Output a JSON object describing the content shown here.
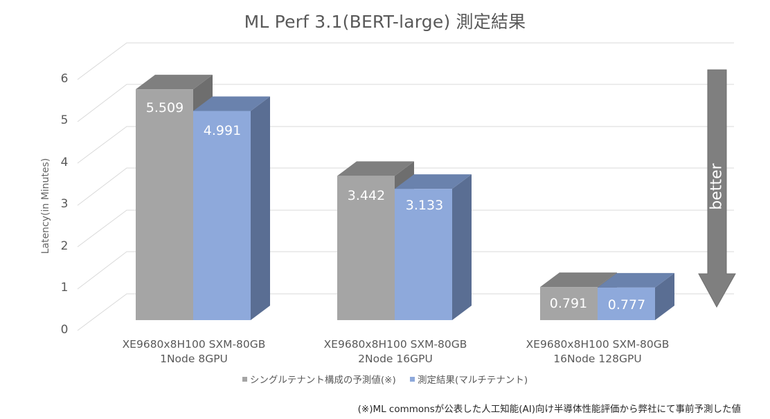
{
  "title": "ML Perf 3.1(BERT-large) 測定結果",
  "y_axis": {
    "label": "Latency(in Minutes)",
    "ticks": [
      "0",
      "1",
      "2",
      "3",
      "4",
      "5",
      "6"
    ]
  },
  "categories": [
    {
      "line1": "XE9680x8H100 SXM-80GB",
      "line2": "1Node 8GPU"
    },
    {
      "line1": "XE9680x8H100 SXM-80GB",
      "line2": "2Node 16GPU"
    },
    {
      "line1": "XE9680x8H100 SXM-80GB",
      "line2": "16Node 128GPU"
    }
  ],
  "values": {
    "single": [
      "5.509",
      "3.442",
      "0.791"
    ],
    "multi": [
      "4.991",
      "3.133",
      "0.777"
    ]
  },
  "legend": {
    "single": "シングルテナント構成の予測値(※)",
    "multi": "測定結果(マルチテナント)"
  },
  "arrow_label": "better",
  "footnote": "(※)ML commonsが公表した人工知能(AI)向け半導体性能評価から弊社にて事前予測した値",
  "colors": {
    "single_front": "#A5A5A5",
    "single_top": "#7F7F7F",
    "single_side": "#6E6E6E",
    "multi_front": "#8EA9DB",
    "multi_top": "#6A82AD",
    "multi_side": "#5A6E93",
    "arrow": "#7F7F7F",
    "grid": "#D9D9D9"
  },
  "chart_data": {
    "type": "bar",
    "title": "ML Perf 3.1(BERT-large) 測定結果",
    "xlabel": "",
    "ylabel": "Latency(in Minutes)",
    "ylim": [
      0,
      6
    ],
    "yticks": [
      0,
      1,
      2,
      3,
      4,
      5,
      6
    ],
    "grid": true,
    "style": "3d-clustered-column",
    "categories": [
      "XE9680x8H100 SXM-80GB 1Node 8GPU",
      "XE9680x8H100 SXM-80GB 2Node 16GPU",
      "XE9680x8H100 SXM-80GB 16Node 128GPU"
    ],
    "series": [
      {
        "name": "シングルテナント構成の予測値(※)",
        "color": "#A5A5A5",
        "values": [
          5.509,
          3.442,
          0.791
        ]
      },
      {
        "name": "測定結果(マルチテナント)",
        "color": "#8EA9DB",
        "values": [
          4.991,
          3.133,
          0.777
        ]
      }
    ],
    "legend_position": "bottom",
    "annotations": [
      "better (downward arrow: lower latency is better)",
      "(※)ML commonsが公表した人工知能(AI)向け半導体性能評価から弊社にて事前予測した値"
    ]
  }
}
